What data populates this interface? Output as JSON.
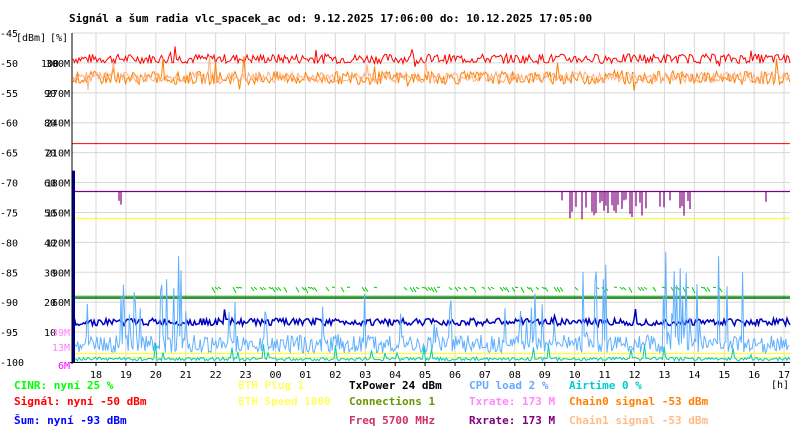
{
  "chart_data": {
    "type": "line",
    "title": "Signál a šum radia vlc_spacek_ac od: 9.12.2025 17:06:00 do: 10.12.2025 17:05:00",
    "axis_units": {
      "dbm": "[dBm]",
      "pct": "[%]",
      "hours": "[h]"
    },
    "dbm_ticks": [
      "-45",
      "-50",
      "-55",
      "-60",
      "-65",
      "-70",
      "-75",
      "-80",
      "-85",
      "-90",
      "-95",
      "-100"
    ],
    "pct_ticks": [
      "100",
      "90",
      "80",
      "70",
      "60",
      "50",
      "40",
      "30",
      "20",
      "10"
    ],
    "rate_ticks": [
      "300M",
      "270M",
      "240M",
      "210M",
      "180M",
      "150M",
      "120M",
      "90M",
      "60M"
    ],
    "rate_ticks_colored": [
      {
        "label": "39M",
        "color": "#ff80ff"
      },
      {
        "label": "13M",
        "color": "#ff80ff"
      },
      {
        "label": "6M",
        "color": "#ff00ff"
      }
    ],
    "x_ticks": [
      "18",
      "19",
      "20",
      "21",
      "22",
      "23",
      "00",
      "01",
      "02",
      "03",
      "04",
      "05",
      "06",
      "07",
      "08",
      "09",
      "10",
      "11",
      "12",
      "13",
      "14",
      "15",
      "16",
      "17"
    ],
    "ylim_dbm": [
      -100,
      -45
    ],
    "grid": true,
    "series": [
      {
        "name": "Signál",
        "color": "#ff0000",
        "approx_dbm": -50
      },
      {
        "name": "Chain0 signal",
        "color": "#ff8000",
        "approx_dbm": -53
      },
      {
        "name": "Chain1 signal",
        "color": "#ffb080",
        "approx_dbm": -53
      },
      {
        "name": "Šum",
        "color": "#0000c0",
        "approx_dbm": -93
      },
      {
        "name": "CINR",
        "color": "#00cc00",
        "approx_pct": 25
      },
      {
        "name": "CPU load",
        "color": "#60b0ff",
        "approx_pct": 2
      },
      {
        "name": "Airtime",
        "color": "#00c8c8",
        "approx_pct": 0
      },
      {
        "name": "Txrate",
        "color": "#ff80ff",
        "approx_mbps": 173
      },
      {
        "name": "Rxrate",
        "color": "#800080",
        "approx_mbps": 173
      },
      {
        "name": "Connections",
        "color": "#006600",
        "value": 1
      }
    ],
    "reference_lines": [
      {
        "color": "#ff0000",
        "dbm": -63.5
      },
      {
        "color": "#800080",
        "dbm": -71.5
      },
      {
        "color": "#ffff00",
        "dbm": -76
      },
      {
        "color": "#00aa00",
        "dbm": -89
      },
      {
        "color": "#ffff00",
        "dbm": -98.6
      },
      {
        "color": "#ffff00",
        "dbm": -99.3
      }
    ]
  },
  "legend": {
    "col1": [
      {
        "text": "CINR: nyní 25 %",
        "color": "#00ff00"
      },
      {
        "text": "Signál: nyní -50 dBm",
        "color": "#ff0000"
      },
      {
        "text": "Šum: nyní -93 dBm",
        "color": "#0000ff"
      }
    ],
    "col2": [
      {
        "text": "ETH Plug 1",
        "color": "#ffff60"
      },
      {
        "text": "ETH Speed 1000",
        "color": "#ffff60"
      }
    ],
    "col3": [
      {
        "text": "TxPower 24 dBm",
        "color": "#000000"
      },
      {
        "text": "Connections 1",
        "color": "#669900"
      },
      {
        "text": "Freq 5700 MHz",
        "color": "#cc3366"
      }
    ],
    "col4": [
      {
        "text": "CPU load 2 %",
        "color": "#66aaff"
      },
      {
        "text": "Txrate: 173 M",
        "color": "#ff88ff"
      },
      {
        "text": "Rxrate: 173 M",
        "color": "#800080"
      }
    ],
    "col5": [
      {
        "text": "Airtime 0 %",
        "color": "#00cccc"
      },
      {
        "text": "Chain0 signal -53 dBm",
        "color": "#ff8000"
      },
      {
        "text": "Chain1 signal -53 dBm",
        "color": "#ffbb88"
      }
    ]
  }
}
